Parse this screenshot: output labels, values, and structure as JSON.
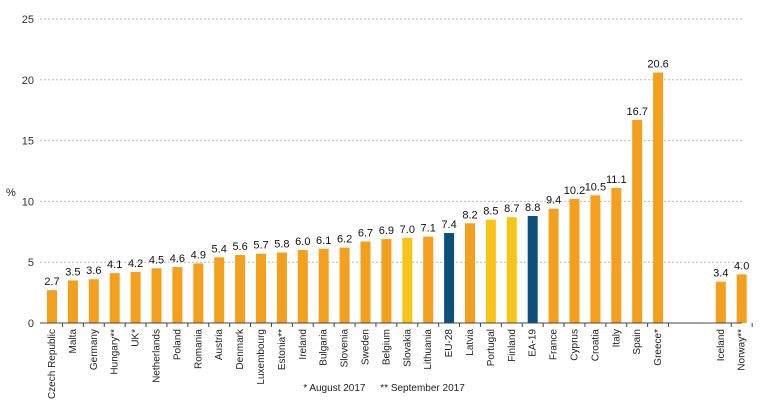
{
  "chart_data": {
    "type": "bar",
    "ylabel": "%",
    "ylim": [
      0,
      25
    ],
    "yticks": [
      "0",
      "5",
      "10",
      "15",
      "20",
      "25"
    ],
    "grid": true,
    "categories": [
      "Czech Republic",
      "Malta",
      "Germany",
      "Hungary**",
      "UK*",
      "Netherlands",
      "Poland",
      "Romania",
      "Austria",
      "Denmark",
      "Luxembourg",
      "Estonia**",
      "Ireland",
      "Bulgaria",
      "Slovenia",
      "Sweden",
      "Belgium",
      "Slovakia",
      "Lithuania",
      "EU-28",
      "Latvia",
      "Portugal",
      "Finland",
      "EA-19",
      "France",
      "Cyprus",
      "Croatia",
      "Italy",
      "Spain",
      "Greece*",
      "Iceland",
      "Norway**"
    ],
    "values": [
      2.7,
      3.5,
      3.6,
      4.1,
      4.2,
      4.5,
      4.6,
      4.9,
      5.4,
      5.6,
      5.7,
      5.8,
      6.0,
      6.1,
      6.2,
      6.7,
      6.9,
      7.0,
      7.1,
      7.4,
      8.2,
      8.5,
      8.7,
      8.8,
      9.4,
      10.2,
      10.5,
      11.1,
      16.7,
      20.6,
      3.4,
      4.0
    ],
    "value_labels": [
      "2.7",
      "3.5",
      "3.6",
      "4.1",
      "4.2",
      "4.5",
      "4.6",
      "4.9",
      "5.4",
      "5.6",
      "5.7",
      "5.8",
      "6.0",
      "6.1",
      "6.2",
      "6.7",
      "6.9",
      "7.0",
      "7.1",
      "7.4",
      "8.2",
      "8.5",
      "8.7",
      "8.8",
      "9.4",
      "10.2",
      "10.5",
      "11.1",
      "16.7",
      "20.6",
      "3.4",
      "4.0"
    ],
    "bar_colors": [
      "#f2a01e",
      "#f2a01e",
      "#f2a01e",
      "#f2a01e",
      "#f2a01e",
      "#f2a01e",
      "#f2a01e",
      "#f2a01e",
      "#f2a01e",
      "#f2a01e",
      "#f2a01e",
      "#f2a01e",
      "#f2a01e",
      "#f2a01e",
      "#f2a01e",
      "#f2a01e",
      "#f2a01e",
      "#f7c41a",
      "#f2a01e",
      "#0e4f7a",
      "#f2a01e",
      "#f7c41a",
      "#f7c41a",
      "#0e4f7a",
      "#f2a01e",
      "#f2a01e",
      "#f2a01e",
      "#f2a01e",
      "#f2a01e",
      "#f2a01e",
      "#f2a01e",
      "#f2a01e"
    ],
    "group_sizes": [
      30,
      2
    ]
  },
  "footnotes": [
    "*  August 2017",
    "** September 2017"
  ]
}
